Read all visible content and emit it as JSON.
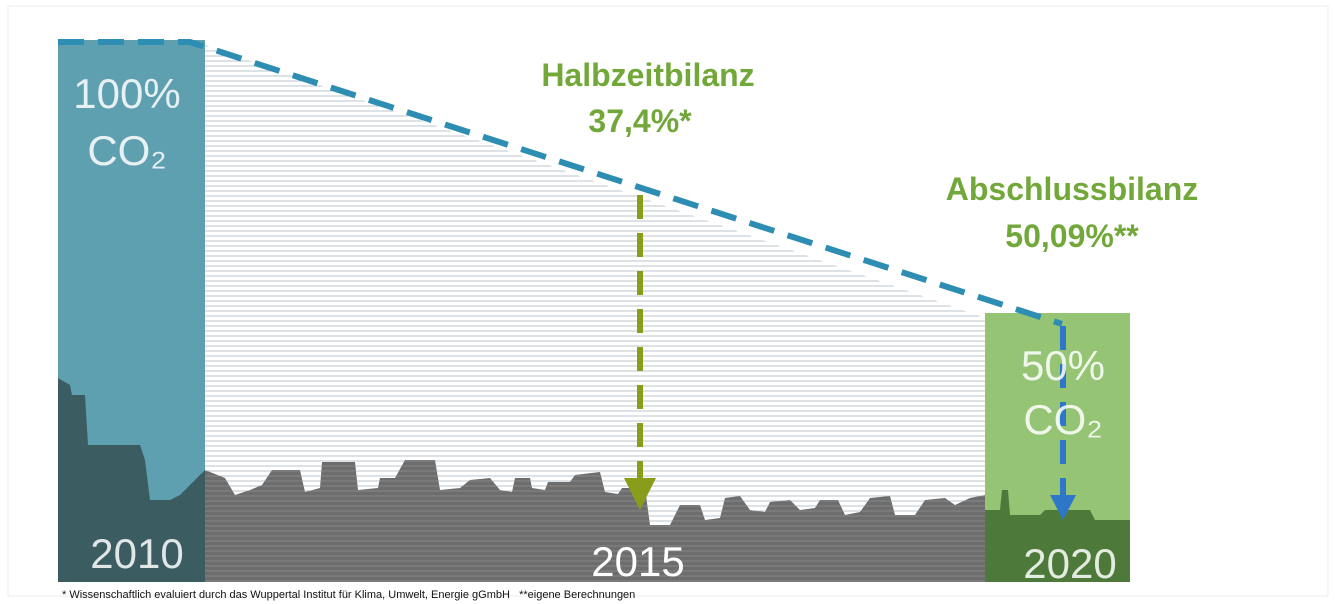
{
  "start": {
    "percent": "100%",
    "label": "CO₂",
    "year": "2010"
  },
  "midterm": {
    "title": "Halbzeitbilanz",
    "value": "37,4%*",
    "year": "2015"
  },
  "final": {
    "title": "Abschlussbilanz",
    "value": "50,09%**"
  },
  "target": {
    "percent": "50%",
    "label": "CO₂",
    "year": "2020"
  },
  "footnote": "* Wissenschaftlich evaluiert durch das Wuppertal Institut für Klima, Umwelt, Energie gGmbH   **eigene Berechnungen"
}
